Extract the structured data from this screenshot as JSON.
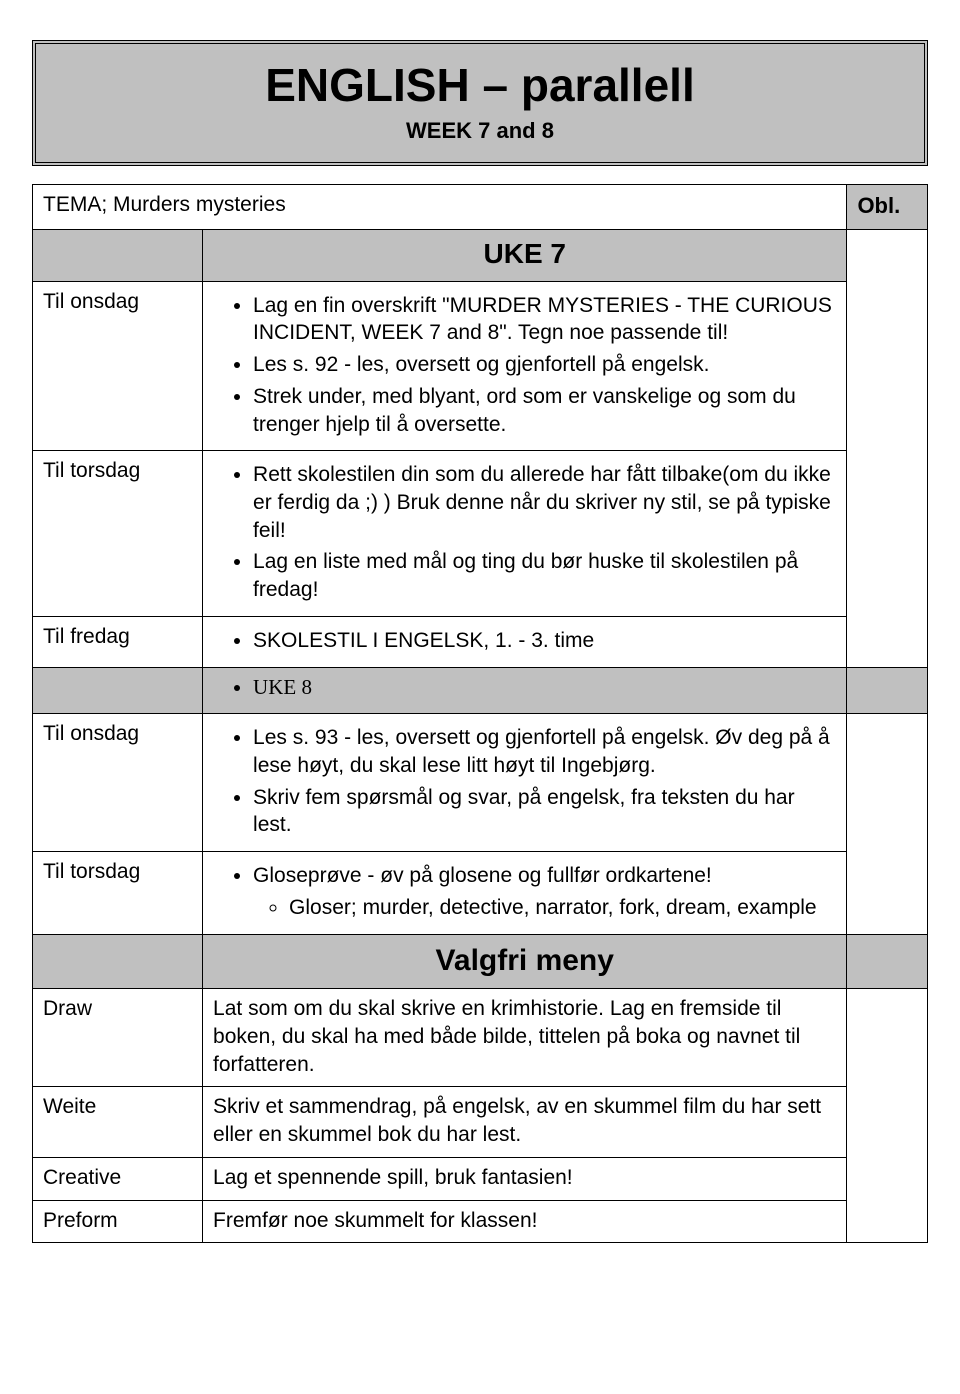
{
  "header": {
    "title": "ENGLISH – parallell",
    "subtitle": "WEEK 7 and 8"
  },
  "tema_label": "TEMA; Murders mysteries",
  "obl_label": "Obl.",
  "uke7_label": "UKE 7",
  "uke8_label": "UKE 8",
  "valgfri_label": "Valgfri meny",
  "rows": {
    "onsdag1_day": "Til onsdag",
    "onsdag1_b1": "Lag en fin overskrift \"MURDER MYSTERIES - THE CURIOUS INCIDENT, WEEK 7 and 8\". Tegn noe passende til!",
    "onsdag1_b2": "Les s. 92 - les, oversett og gjenfortell på engelsk.",
    "onsdag1_b3": "Strek under, med blyant, ord som er vanskelige og som du trenger hjelp til å oversette.",
    "torsdag1_day": "Til torsdag",
    "torsdag1_b1": "Rett skolestilen din som du allerede har fått tilbake(om du ikke er ferdig da ;) ) Bruk denne når du skriver ny stil, se på typiske feil!",
    "torsdag1_b2": "Lag en liste med mål og ting du bør huske til skolestilen på fredag!",
    "fredag_day": "Til fredag",
    "fredag_b1": "SKOLESTIL I ENGELSK, 1. - 3. time",
    "onsdag2_day": "Til onsdag",
    "onsdag2_b1": "Les s. 93 - les, oversett og gjenfortell på engelsk. Øv deg på å lese høyt, du skal lese litt høyt til Ingebjørg.",
    "onsdag2_b2": "Skriv fem spørsmål og svar, på engelsk, fra teksten du har lest.",
    "torsdag2_day": "Til torsdag",
    "torsdag2_b1": "Gloseprøve - øv på glosene og fullfør ordkartene!",
    "torsdag2_b1a": "Gloser; murder, detective, narrator, fork, dream, example",
    "draw_day": "Draw",
    "draw_txt": "Lat som om du skal skrive en krimhistorie. Lag en fremside til boken, du skal ha med både bilde, tittelen på boka og navnet til forfatteren.",
    "weite_day": "Weite",
    "weite_txt": "Skriv et sammendrag, på engelsk, av en skummel film du har sett eller en skummel bok du har lest.",
    "creative_day": "Creative",
    "creative_txt": "Lag et spennende spill, bruk fantasien!",
    "preform_day": "Preform",
    "preform_txt": "Fremfør noe skummelt for klassen!"
  },
  "style": {
    "bg_gray": "#c0c0c0",
    "border_color": "#000000",
    "title_fontsize": 46,
    "body_fontsize": 21,
    "font_family": "Comic Sans MS"
  }
}
